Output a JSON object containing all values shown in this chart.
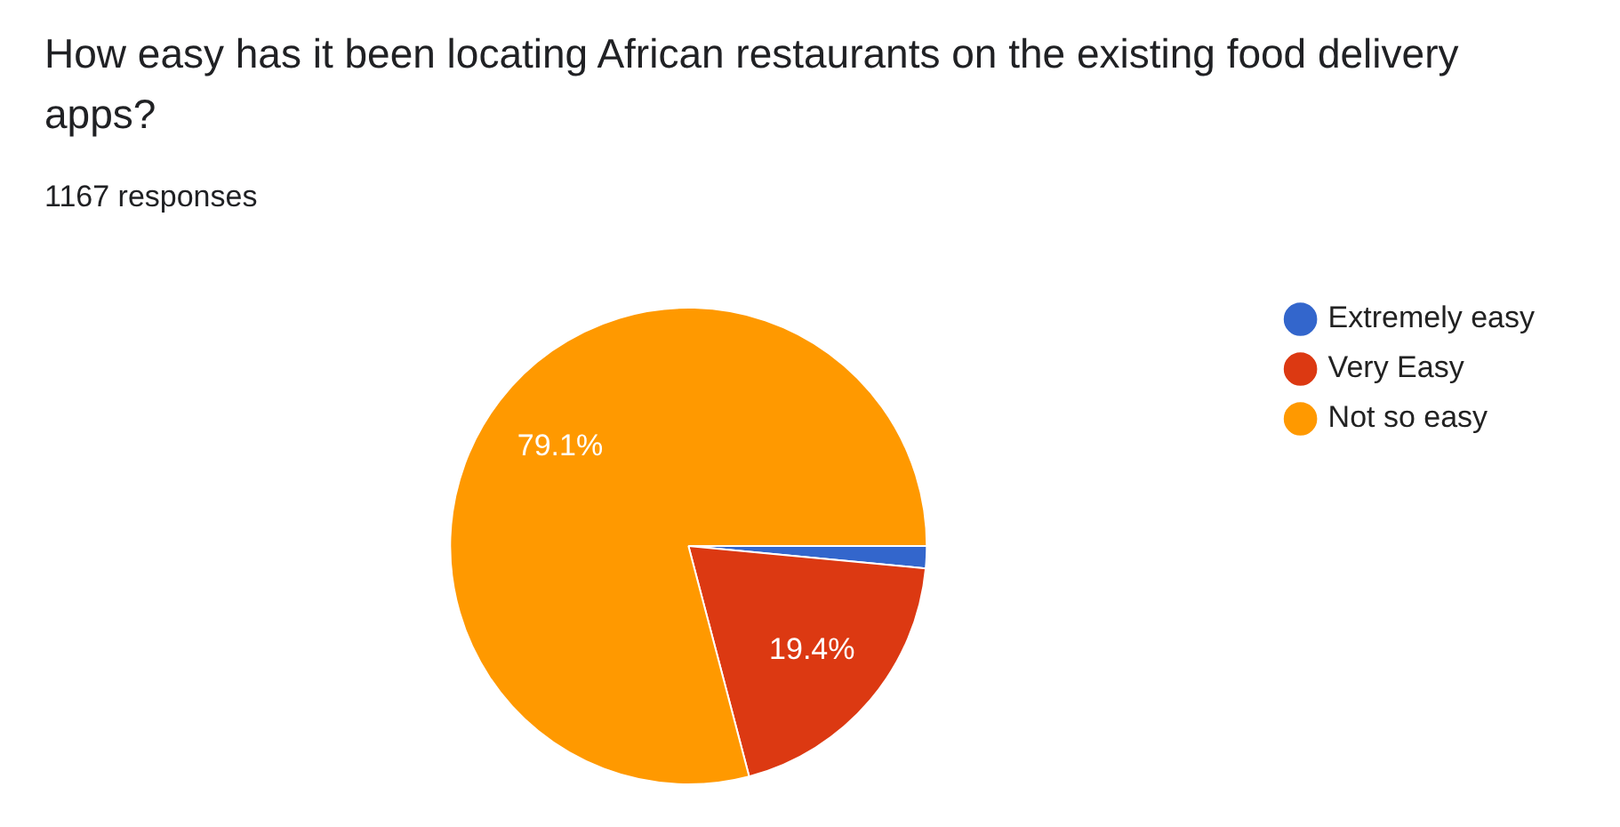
{
  "chart_data": {
    "type": "pie",
    "title": "How easy has it been locating African restaurants on the existing food delivery apps?",
    "subtitle": "1167 responses",
    "categories": [
      "Extremely easy",
      "Very Easy",
      "Not so easy"
    ],
    "values": [
      1.5,
      19.4,
      79.1
    ],
    "colors": [
      "#3366cc",
      "#dc3912",
      "#ff9900"
    ],
    "value_labels": [
      null,
      "19.4%",
      "79.1%"
    ],
    "legend": "top right"
  }
}
